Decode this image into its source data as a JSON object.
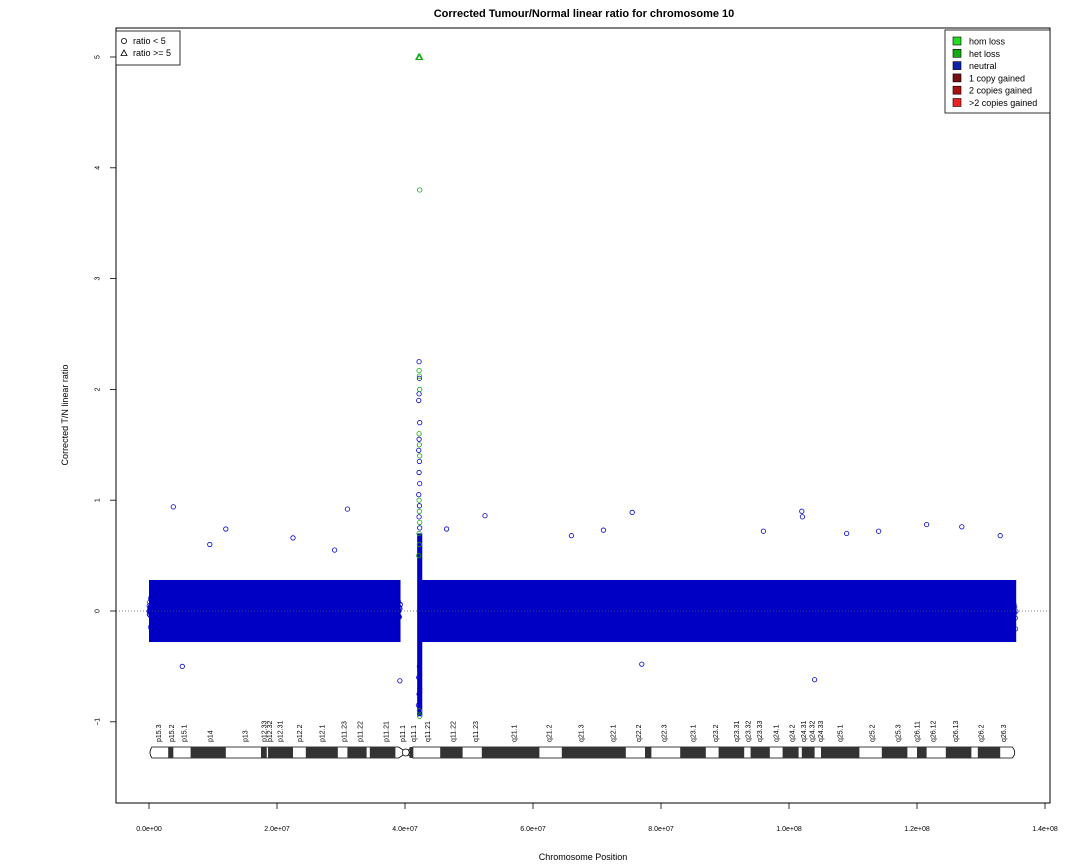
{
  "chart_data": {
    "type": "scatter",
    "title": "Corrected Tumour/Normal linear ratio for chromosome  10",
    "xlabel": "Chromosome Position",
    "ylabel": "Corrected T/N linear ratio",
    "xlim": [
      -5000000,
      140000000
    ],
    "ylim": [
      -1.75,
      5.3
    ],
    "x_ticks": [
      0,
      20000000,
      40000000,
      60000000,
      80000000,
      100000000,
      120000000,
      140000000
    ],
    "x_tick_labels": [
      "0.0e+00",
      "2.0e+07",
      "4.0e+07",
      "6.0e+07",
      "8.0e+07",
      "1.0e+08",
      "1.2e+08",
      "1.4e+08"
    ],
    "y_ticks": [
      -1,
      0,
      1,
      2,
      3,
      4,
      5
    ],
    "y_tick_labels": [
      "−1",
      "0",
      "1",
      "2",
      "3",
      "4",
      "5"
    ],
    "reference_line_y": 0,
    "shape_legend": [
      {
        "label": "ratio < 5",
        "shape": "circle"
      },
      {
        "label": "ratio >= 5",
        "shape": "triangle"
      }
    ],
    "color_legend": [
      {
        "label": "hom loss",
        "color": "#22dd22"
      },
      {
        "label": "het loss",
        "color": "#11aa11"
      },
      {
        "label": "neutral",
        "color": "#1122aa"
      },
      {
        "label": "1 copy gained",
        "color": "#771111"
      },
      {
        "label": "2 copies gained",
        "color": "#aa1111"
      },
      {
        "label": ">2 copies gained",
        "color": "#ee2222"
      }
    ],
    "series_colors": {
      "neutral": "#0000cc",
      "het_loss": "#11aa11",
      "hom_loss": "#22cc22"
    },
    "series": [
      {
        "name": "neutral",
        "points": [
          [
            3800000,
            0.94
          ],
          [
            9500000,
            0.6
          ],
          [
            12000000,
            0.74
          ],
          [
            22500000,
            0.66
          ],
          [
            31000000,
            0.92
          ],
          [
            29000000,
            0.55
          ],
          [
            46500000,
            0.74
          ],
          [
            52500000,
            0.86
          ],
          [
            75500000,
            0.89
          ],
          [
            66000000,
            0.68
          ],
          [
            71000000,
            0.73
          ],
          [
            96000000,
            0.72
          ],
          [
            102000000,
            0.9
          ],
          [
            102100000,
            0.85
          ],
          [
            109000000,
            0.7
          ],
          [
            114000000,
            0.72
          ],
          [
            121500000,
            0.78
          ],
          [
            127000000,
            0.76
          ],
          [
            133000000,
            0.68
          ],
          [
            104000000,
            -0.62
          ],
          [
            5200000,
            -0.5
          ],
          [
            77000000,
            -0.48
          ],
          [
            39200000,
            -0.63
          ],
          [
            42200000,
            2.25
          ],
          [
            42250000,
            2.1
          ],
          [
            42200000,
            1.96
          ],
          [
            42150000,
            1.9
          ],
          [
            42300000,
            1.7
          ],
          [
            42200000,
            1.55
          ],
          [
            42150000,
            1.45
          ],
          [
            42250000,
            1.35
          ],
          [
            42200000,
            1.25
          ],
          [
            42300000,
            1.15
          ],
          [
            42150000,
            1.05
          ],
          [
            42250000,
            0.95
          ],
          [
            42200000,
            0.85
          ],
          [
            42300000,
            0.75
          ],
          [
            42100000,
            -0.85
          ],
          [
            42200000,
            -0.75
          ],
          [
            42300000,
            -0.7
          ],
          [
            42150000,
            -0.6
          ],
          [
            42250000,
            -0.5
          ]
        ]
      },
      {
        "name": "het_loss",
        "points": [
          [
            42300000,
            3.8
          ],
          [
            42200000,
            2.17
          ],
          [
            42250000,
            2.12
          ],
          [
            42300000,
            2.0
          ],
          [
            42200000,
            1.6
          ],
          [
            42250000,
            1.5
          ],
          [
            42300000,
            1.4
          ],
          [
            42200000,
            1.0
          ],
          [
            42250000,
            0.9
          ],
          [
            42300000,
            0.8
          ],
          [
            42200000,
            0.7
          ],
          [
            42250000,
            0.6
          ],
          [
            42150000,
            0.5
          ],
          [
            42250000,
            -0.9
          ],
          [
            42300000,
            -0.95
          ]
        ]
      },
      {
        "name": "ratio_ge_5",
        "shape": "triangle",
        "points": [
          [
            42150000,
            5.0
          ],
          [
            42300000,
            5.0
          ]
        ]
      }
    ]
  },
  "ideogram": {
    "labels": [
      {
        "label": "p15.3",
        "pos": 1500000
      },
      {
        "label": "p15.2",
        "pos": 3500000
      },
      {
        "label": "p15.1",
        "pos": 5500000
      },
      {
        "label": "p14",
        "pos": 9500000
      },
      {
        "label": "p13",
        "pos": 15000000
      },
      {
        "label": "p12.33",
        "pos": 18000000
      },
      {
        "label": "p12.32",
        "pos": 18800000
      },
      {
        "label": "p12.31",
        "pos": 20500000
      },
      {
        "label": "p12.2",
        "pos": 23500000
      },
      {
        "label": "p12.1",
        "pos": 27000000
      },
      {
        "label": "p11.23",
        "pos": 30500000
      },
      {
        "label": "p11.22",
        "pos": 33000000
      },
      {
        "label": "p11.21",
        "pos": 37000000
      },
      {
        "label": "p11.1",
        "pos": 39600000
      },
      {
        "label": "q11.1",
        "pos": 41300000
      },
      {
        "label": "q11.21",
        "pos": 43500000
      },
      {
        "label": "q11.22",
        "pos": 47500000
      },
      {
        "label": "q11.23",
        "pos": 51000000
      },
      {
        "label": "q21.1",
        "pos": 57000000
      },
      {
        "label": "q21.2",
        "pos": 62500000
      },
      {
        "label": "q21.3",
        "pos": 67500000
      },
      {
        "label": "q22.1",
        "pos": 72500000
      },
      {
        "label": "q22.2",
        "pos": 76500000
      },
      {
        "label": "q22.3",
        "pos": 80500000
      },
      {
        "label": "q23.1",
        "pos": 85000000
      },
      {
        "label": "q23.2",
        "pos": 88500000
      },
      {
        "label": "q23.31",
        "pos": 91800000
      },
      {
        "label": "q23.32",
        "pos": 93600000
      },
      {
        "label": "q23.33",
        "pos": 95400000
      },
      {
        "label": "q24.1",
        "pos": 98000000
      },
      {
        "label": "q24.2",
        "pos": 100500000
      },
      {
        "label": "q24.31",
        "pos": 102300000
      },
      {
        "label": "q24.32",
        "pos": 103600000
      },
      {
        "label": "q24.33",
        "pos": 104900000
      },
      {
        "label": "q25.1",
        "pos": 108000000
      },
      {
        "label": "q25.2",
        "pos": 113000000
      },
      {
        "label": "q25.3",
        "pos": 117000000
      },
      {
        "label": "q26.11",
        "pos": 120000000
      },
      {
        "label": "q26.12",
        "pos": 122500000
      },
      {
        "label": "q26.13",
        "pos": 126000000
      },
      {
        "label": "q26.2",
        "pos": 130000000
      },
      {
        "label": "q26.3",
        "pos": 133500000
      }
    ]
  }
}
